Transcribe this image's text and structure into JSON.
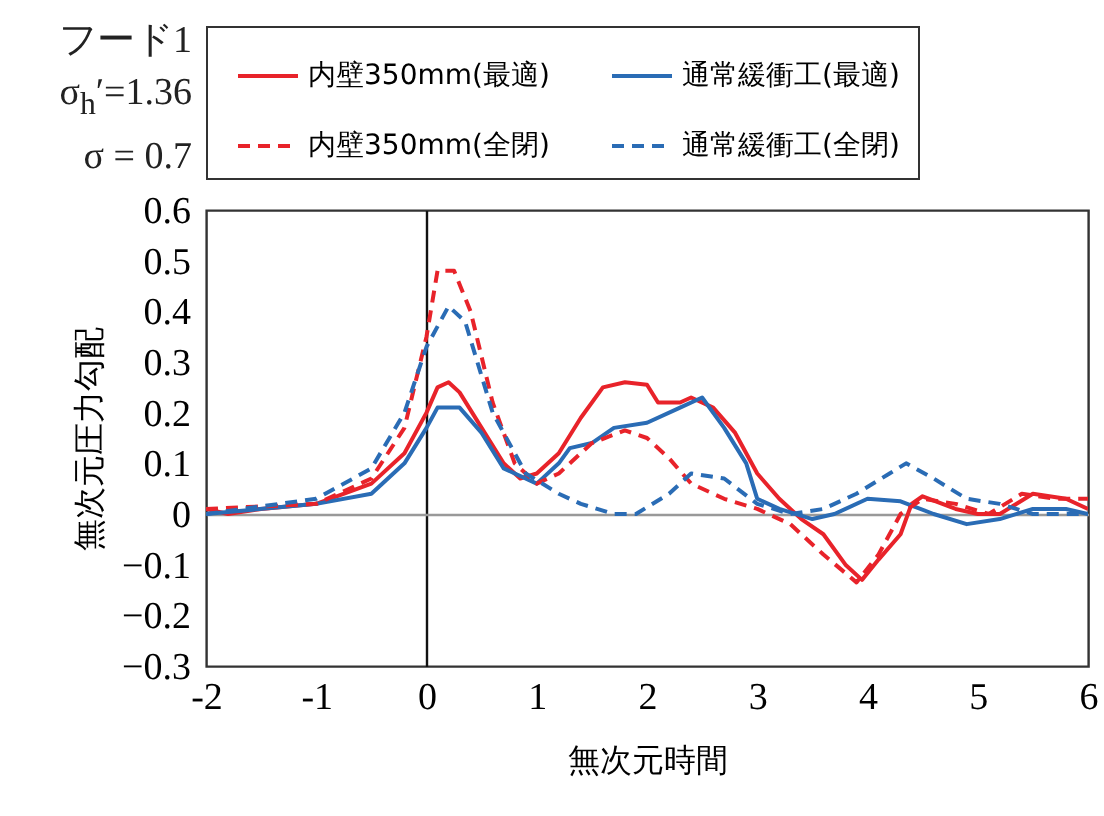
{
  "chart_data": {
    "type": "line",
    "xlabel": "無次元時間",
    "ylabel": "無次元圧力勾配",
    "annotations": [
      "フード1",
      "σ$_{h}$′=1.36",
      "σ = 0.7"
    ],
    "legend": "top",
    "xlim": [
      -2,
      6
    ],
    "xticks": [
      -2,
      -1,
      0,
      1,
      2,
      3,
      4,
      5,
      6
    ],
    "ylim": [
      -0.3,
      0.6
    ],
    "yticks": [
      {
        "value": -0.3,
        "label": "−0.3"
      },
      {
        "value": -0.2,
        "label": "−0.2"
      },
      {
        "value": -0.1,
        "label": "−0.1"
      },
      0,
      0.1,
      0.2,
      0.3,
      0.4,
      0.5,
      0.6
    ],
    "series": [
      {
        "name": "内壁350mm(最適)",
        "color": "#e8232a",
        "line_style": "solid",
        "x": [
          -2,
          -1.8,
          -1.5,
          -1,
          -0.5,
          -0.2,
          0,
          0.1,
          0.2,
          0.3,
          0.5,
          0.7,
          0.85,
          1,
          1.2,
          1.4,
          1.6,
          1.8,
          2,
          2.1,
          2.3,
          2.4,
          2.6,
          2.8,
          3,
          3.2,
          3.4,
          3.6,
          3.8,
          3.95,
          4.1,
          4.3,
          4.4,
          4.5,
          4.8,
          5,
          5.2,
          5.5,
          5.8,
          6
        ],
        "values": [
          0.01,
          0,
          0.01,
          0.02,
          0.06,
          0.12,
          0.2,
          0.25,
          0.26,
          0.24,
          0.17,
          0.1,
          0.07,
          0.08,
          0.12,
          0.19,
          0.25,
          0.26,
          0.255,
          0.22,
          0.22,
          0.23,
          0.21,
          0.16,
          0.08,
          0.03,
          -0.01,
          -0.04,
          -0.1,
          -0.13,
          -0.09,
          -0.04,
          0.02,
          0.035,
          0.01,
          0,
          0,
          0.04,
          0.03,
          0.01
        ]
      },
      {
        "name": "通常緩衝工(最適)",
        "color": "#2a6cb5",
        "line_style": "solid",
        "x": [
          -2,
          -1,
          -0.5,
          -0.2,
          0,
          0.1,
          0.3,
          0.5,
          0.7,
          1,
          1.2,
          1.3,
          1.5,
          1.7,
          2,
          2.3,
          2.5,
          2.7,
          2.9,
          3,
          3.2,
          3.5,
          3.7,
          4,
          4.3,
          4.6,
          4.9,
          5.2,
          5.5,
          5.8,
          6
        ],
        "values": [
          0,
          0.02,
          0.04,
          0.1,
          0.17,
          0.21,
          0.21,
          0.16,
          0.09,
          0.06,
          0.1,
          0.13,
          0.14,
          0.17,
          0.18,
          0.21,
          0.23,
          0.17,
          0.1,
          0.03,
          0.01,
          -0.01,
          0,
          0.03,
          0.025,
          0,
          -0.02,
          -0.01,
          0.01,
          0.01,
          0
        ]
      },
      {
        "name": "内壁350mm(全閉)",
        "color": "#e8232a",
        "line_style": "dashed",
        "x": [
          -2,
          -1,
          -0.5,
          -0.2,
          0,
          0.1,
          0.25,
          0.4,
          0.6,
          0.8,
          1,
          1.2,
          1.5,
          1.8,
          2,
          2.2,
          2.4,
          2.7,
          3,
          3.3,
          3.6,
          3.9,
          4.1,
          4.3,
          4.5,
          4.8,
          5.1,
          5.4,
          5.7,
          6
        ],
        "values": [
          0.01,
          0.02,
          0.07,
          0.17,
          0.35,
          0.48,
          0.48,
          0.4,
          0.22,
          0.1,
          0.06,
          0.08,
          0.14,
          0.165,
          0.15,
          0.11,
          0.06,
          0.03,
          0.01,
          -0.02,
          -0.08,
          -0.135,
          -0.08,
          0,
          0.03,
          0.02,
          0,
          0.04,
          0.03,
          0.03
        ]
      },
      {
        "name": "通常緩衝工(全閉)",
        "color": "#2a6cb5",
        "line_style": "dashed",
        "x": [
          -2,
          -1,
          -0.5,
          -0.2,
          0,
          0.2,
          0.35,
          0.6,
          0.9,
          1.2,
          1.4,
          1.7,
          1.9,
          2.2,
          2.4,
          2.7,
          3,
          3.3,
          3.6,
          3.9,
          4.2,
          4.35,
          4.6,
          4.9,
          5.2,
          5.5,
          6
        ],
        "values": [
          0,
          0.03,
          0.09,
          0.2,
          0.33,
          0.41,
          0.38,
          0.2,
          0.08,
          0.04,
          0.02,
          0,
          0,
          0.04,
          0.08,
          0.07,
          0.02,
          0,
          0.01,
          0.04,
          0.08,
          0.1,
          0.07,
          0.03,
          0.02,
          0,
          0
        ]
      }
    ]
  }
}
